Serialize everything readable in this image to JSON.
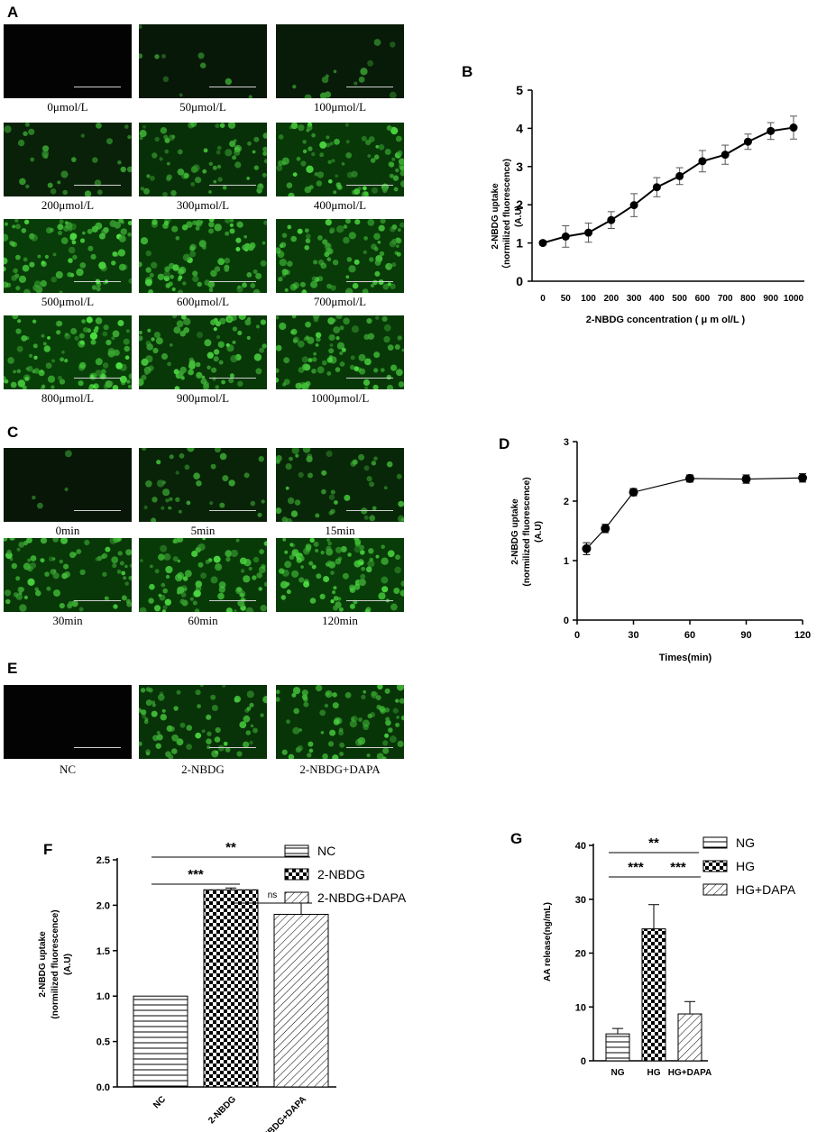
{
  "panel_letters": [
    "A",
    "B",
    "C",
    "D",
    "E",
    "F",
    "G"
  ],
  "panel_a": {
    "labels": [
      "0μmol/L",
      "50μmol/L",
      "100μmol/L",
      "200μmol/L",
      "300μmol/L",
      "400μmol/L",
      "500μmol/L",
      "600μmol/L",
      "700μmol/L",
      "800μmol/L",
      "900μmol/L",
      "1000μmol/L"
    ],
    "brightness": [
      0.0,
      0.08,
      0.12,
      0.25,
      0.55,
      0.7,
      0.8,
      0.75,
      0.78,
      0.85,
      0.7,
      0.72
    ]
  },
  "panel_c": {
    "labels": [
      "0min",
      "5min",
      "15min",
      "30min",
      "60min",
      "120min"
    ],
    "brightness": [
      0.03,
      0.3,
      0.38,
      0.7,
      0.75,
      0.8
    ]
  },
  "panel_e": {
    "labels": [
      "NC",
      "2-NBDG",
      "2-NBDG+DAPA"
    ],
    "brightness": [
      0.0,
      0.6,
      0.65
    ]
  },
  "chart_b": {
    "type": "line",
    "ylabel_line1": "2-NBDG uptake",
    "ylabel_line2": "（normilized fluorescence)",
    "ylabel_line3": "(A.U)",
    "xlabel": "2-NBDG concentration ( μ m ol/L )",
    "categories": [
      "0",
      "50",
      "100",
      "200",
      "300",
      "400",
      "500",
      "600",
      "700",
      "800",
      "900",
      "1000"
    ],
    "values": [
      1.0,
      1.17,
      1.27,
      1.6,
      1.99,
      2.46,
      2.75,
      3.14,
      3.31,
      3.65,
      3.93,
      4.02
    ],
    "errors": [
      0.05,
      0.28,
      0.25,
      0.22,
      0.3,
      0.25,
      0.22,
      0.28,
      0.25,
      0.2,
      0.22,
      0.3
    ],
    "yticks": [
      "0",
      "1",
      "2",
      "3",
      "4",
      "5"
    ],
    "ylim": [
      0,
      5
    ]
  },
  "chart_d": {
    "type": "line",
    "ylabel_line1": "2-NBDG uptake",
    "ylabel_line2": "(normilized fluorescence)",
    "ylabel_line3": "(A.U)",
    "xlabel": "Times(min)",
    "x": [
      5,
      15,
      30,
      60,
      90,
      120
    ],
    "values": [
      1.2,
      1.54,
      2.15,
      2.38,
      2.37,
      2.39
    ],
    "errors": [
      0.1,
      0.07,
      0.06,
      0.06,
      0.07,
      0.07
    ],
    "xticks": [
      "0",
      "30",
      "60",
      "90",
      "120"
    ],
    "yticks": [
      "0",
      "1",
      "2",
      "3"
    ],
    "xlim": [
      0,
      120
    ],
    "ylim": [
      0,
      3
    ]
  },
  "chart_f": {
    "type": "bar",
    "ylabel_line1": "2-NBDG uptake",
    "ylabel_line2": "(normilized fluorescence)",
    "ylabel_line3": "(A.U)",
    "categories": [
      "NC",
      "2-NBDG",
      "2-NBDG+DAPA"
    ],
    "values": [
      1.0,
      2.17,
      1.9
    ],
    "errors": [
      0.0,
      0.02,
      0.2
    ],
    "yticks": [
      "0.0",
      "0.5",
      "1.0",
      "1.5",
      "2.0",
      "2.5"
    ],
    "ylim": [
      0,
      2.5
    ],
    "legend": [
      "NC",
      "2-NBDG",
      "2-NBDG+DAPA"
    ],
    "sig_top": "**",
    "sig_left": "***",
    "sig_right": "ns"
  },
  "chart_g": {
    "type": "bar",
    "ylabel": "AA release(ng/mL)",
    "categories": [
      "NG",
      "HG",
      "HG+DAPA"
    ],
    "values": [
      5.0,
      24.5,
      8.7
    ],
    "errors": [
      1.0,
      4.5,
      2.3
    ],
    "yticks": [
      "0",
      "10",
      "20",
      "30",
      "40"
    ],
    "ylim": [
      0,
      40
    ],
    "legend": [
      "NG",
      "HG",
      "HG+DAPA"
    ],
    "sig_top": "**",
    "sig_left": "***",
    "sig_right": "***"
  }
}
